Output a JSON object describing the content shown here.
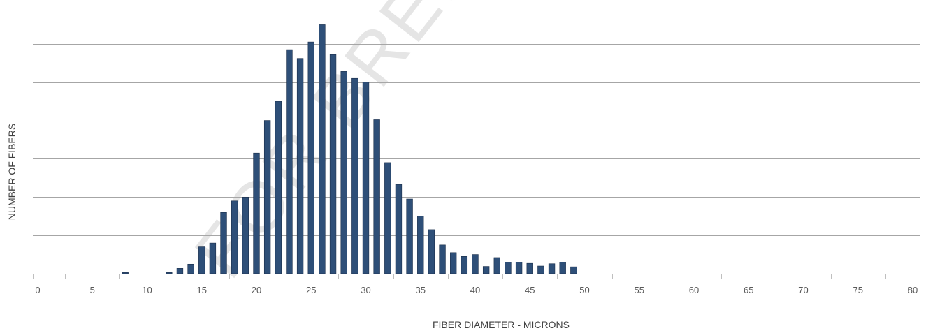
{
  "chart_data": {
    "type": "bar",
    "title": "",
    "xlabel": "FIBER DIAMETER - MICRONS",
    "ylabel": "NUMBER OF FIBERS",
    "xlim": [
      0,
      80
    ],
    "x_ticks": [
      0,
      5,
      10,
      15,
      20,
      25,
      30,
      35,
      40,
      45,
      50,
      55,
      60,
      65,
      70,
      75,
      80
    ],
    "ylim": [
      0,
      7
    ],
    "y_gridlines": [
      0,
      1,
      2,
      3,
      4,
      5,
      6,
      7
    ],
    "y_tick_labels_shown": false,
    "grid": "horizontal",
    "legend": "none",
    "bar_color": "#2e4f78",
    "watermark": "FOR BREEDER",
    "bins": [
      {
        "x": 8,
        "count": 0.03
      },
      {
        "x": 12,
        "count": 0.03
      },
      {
        "x": 13,
        "count": 0.14
      },
      {
        "x": 14,
        "count": 0.25
      },
      {
        "x": 15,
        "count": 0.7
      },
      {
        "x": 16,
        "count": 0.8
      },
      {
        "x": 17,
        "count": 1.6
      },
      {
        "x": 18,
        "count": 1.9
      },
      {
        "x": 19,
        "count": 2.0
      },
      {
        "x": 20,
        "count": 3.15
      },
      {
        "x": 21,
        "count": 4.0
      },
      {
        "x": 22,
        "count": 4.5
      },
      {
        "x": 23,
        "count": 5.85
      },
      {
        "x": 24,
        "count": 5.62
      },
      {
        "x": 25,
        "count": 6.05
      },
      {
        "x": 26,
        "count": 6.5
      },
      {
        "x": 27,
        "count": 5.72
      },
      {
        "x": 28,
        "count": 5.28
      },
      {
        "x": 29,
        "count": 5.1
      },
      {
        "x": 30,
        "count": 5.0
      },
      {
        "x": 31,
        "count": 4.02
      },
      {
        "x": 32,
        "count": 2.9
      },
      {
        "x": 33,
        "count": 2.33
      },
      {
        "x": 34,
        "count": 1.95
      },
      {
        "x": 35,
        "count": 1.5
      },
      {
        "x": 36,
        "count": 1.15
      },
      {
        "x": 37,
        "count": 0.75
      },
      {
        "x": 38,
        "count": 0.55
      },
      {
        "x": 39,
        "count": 0.45
      },
      {
        "x": 40,
        "count": 0.5
      },
      {
        "x": 41,
        "count": 0.19
      },
      {
        "x": 42,
        "count": 0.42
      },
      {
        "x": 43,
        "count": 0.3
      },
      {
        "x": 44,
        "count": 0.3
      },
      {
        "x": 45,
        "count": 0.27
      },
      {
        "x": 46,
        "count": 0.2
      },
      {
        "x": 47,
        "count": 0.26
      },
      {
        "x": 48,
        "count": 0.3
      },
      {
        "x": 49,
        "count": 0.18
      }
    ]
  }
}
